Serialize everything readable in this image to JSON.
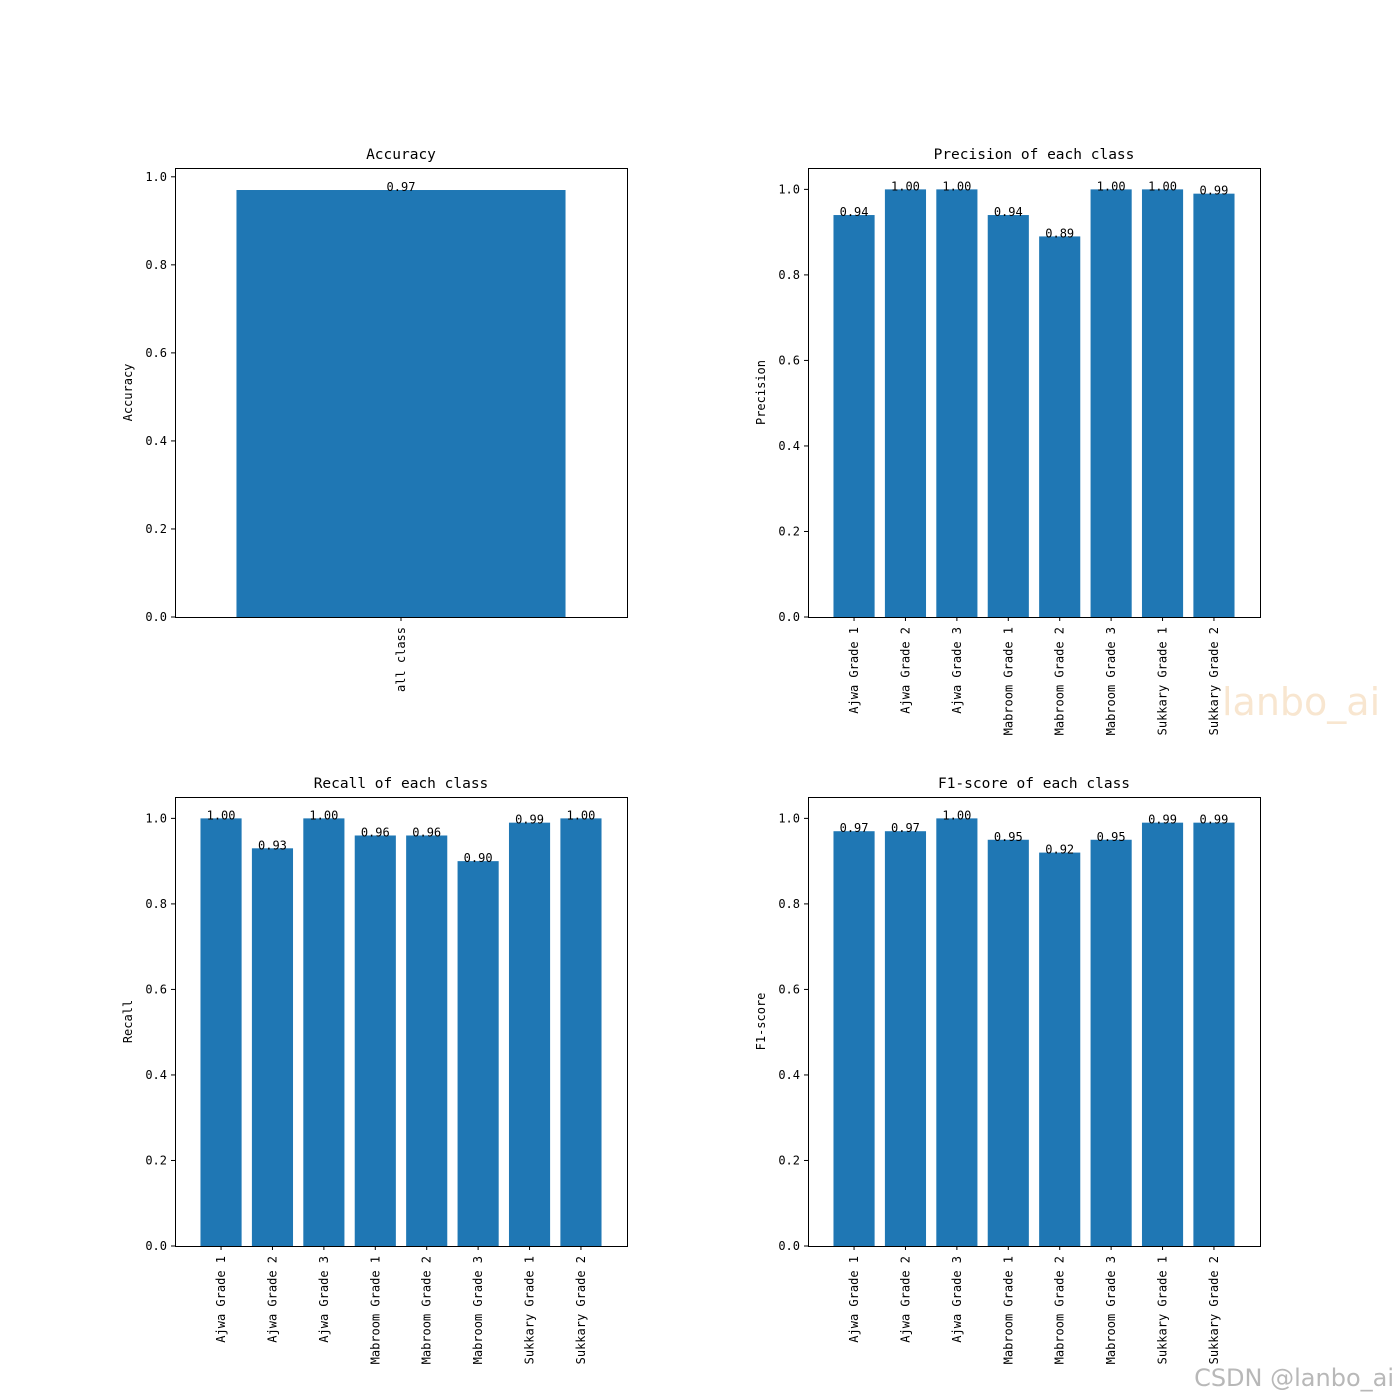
{
  "watermarks": {
    "faint": "lanbo_ai",
    "credit": "CSDN @lanbo_ai"
  },
  "colors": {
    "bar": "#1f77b4",
    "axis": "#000000",
    "background": "#ffffff"
  },
  "chart_data": [
    {
      "type": "bar",
      "title": "Accuracy",
      "ylabel": "Accuracy",
      "xlabel": "",
      "categories": [
        "all class"
      ],
      "values": [
        0.97
      ],
      "value_labels": [
        "0.97"
      ],
      "ylim": [
        0,
        1.02
      ],
      "yticks": [
        0.0,
        0.2,
        0.4,
        0.6,
        0.8,
        1.0
      ],
      "grid": false
    },
    {
      "type": "bar",
      "title": "Precision of each class",
      "ylabel": "Precision",
      "xlabel": "",
      "categories": [
        "Ajwa Grade 1",
        "Ajwa Grade 2",
        "Ajwa Grade 3",
        "Mabroom Grade 1",
        "Mabroom Grade 2",
        "Mabroom Grade 3",
        "Sukkary Grade 1",
        "Sukkary Grade 2"
      ],
      "values": [
        0.94,
        1.0,
        1.0,
        0.94,
        0.89,
        1.0,
        1.0,
        0.99
      ],
      "value_labels": [
        "0.94",
        "1.00",
        "1.00",
        "0.94",
        "0.89",
        "1.00",
        "1.00",
        "0.99"
      ],
      "ylim": [
        0,
        1.05
      ],
      "yticks": [
        0.0,
        0.2,
        0.4,
        0.6,
        0.8,
        1.0
      ],
      "grid": false
    },
    {
      "type": "bar",
      "title": "Recall of each class",
      "ylabel": "Recall",
      "xlabel": "",
      "categories": [
        "Ajwa Grade 1",
        "Ajwa Grade 2",
        "Ajwa Grade 3",
        "Mabroom Grade 1",
        "Mabroom Grade 2",
        "Mabroom Grade 3",
        "Sukkary Grade 1",
        "Sukkary Grade 2"
      ],
      "values": [
        1.0,
        0.93,
        1.0,
        0.96,
        0.96,
        0.9,
        0.99,
        1.0
      ],
      "value_labels": [
        "1.00",
        "0.93",
        "1.00",
        "0.96",
        "0.96",
        "0.90",
        "0.99",
        "1.00"
      ],
      "ylim": [
        0,
        1.05
      ],
      "yticks": [
        0.0,
        0.2,
        0.4,
        0.6,
        0.8,
        1.0
      ],
      "grid": false
    },
    {
      "type": "bar",
      "title": "F1-score of each class",
      "ylabel": "F1-score",
      "xlabel": "",
      "categories": [
        "Ajwa Grade 1",
        "Ajwa Grade 2",
        "Ajwa Grade 3",
        "Mabroom Grade 1",
        "Mabroom Grade 2",
        "Mabroom Grade 3",
        "Sukkary Grade 1",
        "Sukkary Grade 2"
      ],
      "values": [
        0.97,
        0.97,
        1.0,
        0.95,
        0.92,
        0.95,
        0.99,
        0.99
      ],
      "value_labels": [
        "0.97",
        "0.97",
        "1.00",
        "0.95",
        "0.92",
        "0.95",
        "0.99",
        "0.99"
      ],
      "ylim": [
        0,
        1.05
      ],
      "yticks": [
        0.0,
        0.2,
        0.4,
        0.6,
        0.8,
        1.0
      ],
      "grid": false
    }
  ]
}
